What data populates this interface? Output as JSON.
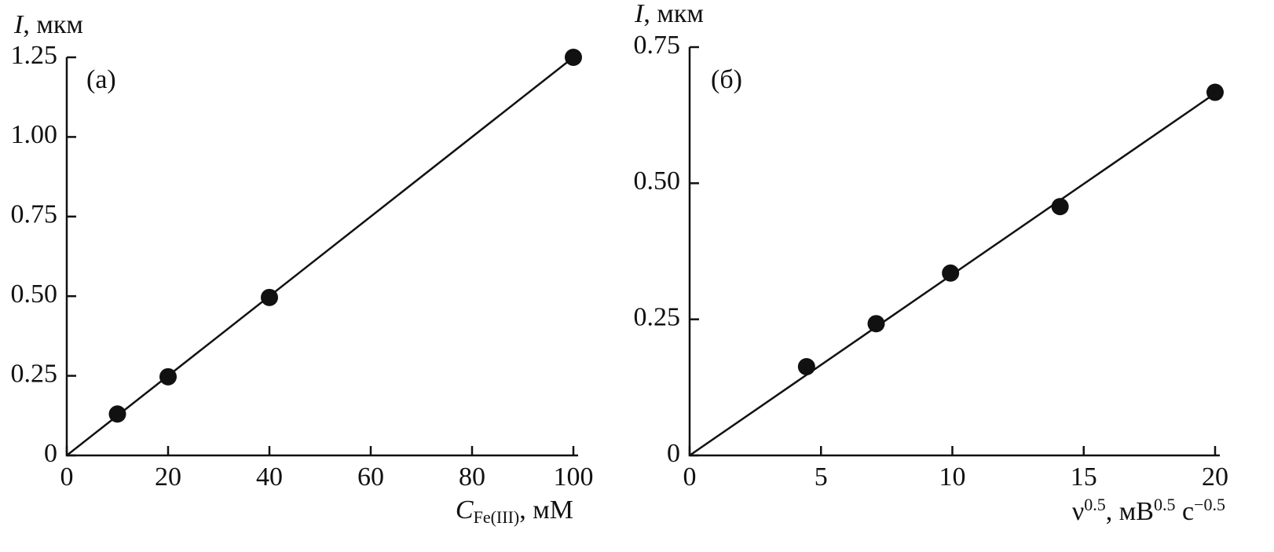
{
  "chart_data": [
    {
      "type": "scatter",
      "panel_label": "(а)",
      "y_label": [
        {
          "text": "I",
          "style": "italic"
        },
        {
          "text": ", мкм"
        }
      ],
      "x_label": [
        {
          "text": "C",
          "style": "italic"
        },
        {
          "text": "Fe(III)",
          "style": "sub"
        },
        {
          "text": ", мМ"
        }
      ],
      "x": [
        10,
        20,
        40,
        100
      ],
      "values": [
        0.13,
        0.247,
        0.496,
        1.25
      ],
      "color": "#111111",
      "fit_line": {
        "x": [
          0,
          100
        ],
        "values": [
          0,
          1.25
        ]
      },
      "xlim": [
        0,
        100
      ],
      "ylim": [
        0,
        1.25
      ],
      "xticks": [
        0,
        20,
        40,
        60,
        80,
        100
      ],
      "yticks": [
        0,
        0.25,
        {
          "value": 0.5,
          "label": "0.50"
        },
        0.75,
        {
          "value": 1,
          "label": "1.00"
        },
        1.25
      ]
    },
    {
      "type": "scatter",
      "panel_label": "(б)",
      "y_label": [
        {
          "text": "I",
          "style": "italic"
        },
        {
          "text": ", мкм"
        }
      ],
      "x_label": [
        {
          "text": "ν"
        },
        {
          "text": "0.5",
          "style": "sup"
        },
        {
          "text": ", мВ"
        },
        {
          "text": "0.5",
          "style": "sup"
        },
        {
          "text": " с"
        },
        {
          "text": "−0.5",
          "style": "sup"
        }
      ],
      "x": [
        4.45,
        7.1,
        9.93,
        14.1,
        20
      ],
      "values": [
        0.163,
        0.242,
        0.335,
        0.457,
        0.667
      ],
      "color": "#111111",
      "fit_line": {
        "x": [
          0,
          20
        ],
        "values": [
          0,
          0.665
        ]
      },
      "xlim": [
        0,
        20
      ],
      "ylim": [
        0,
        0.75
      ],
      "xticks": [
        0,
        5,
        10,
        15,
        20
      ],
      "yticks": [
        0,
        0.25,
        {
          "value": 0.5,
          "label": "0.50"
        },
        0.75
      ]
    }
  ]
}
